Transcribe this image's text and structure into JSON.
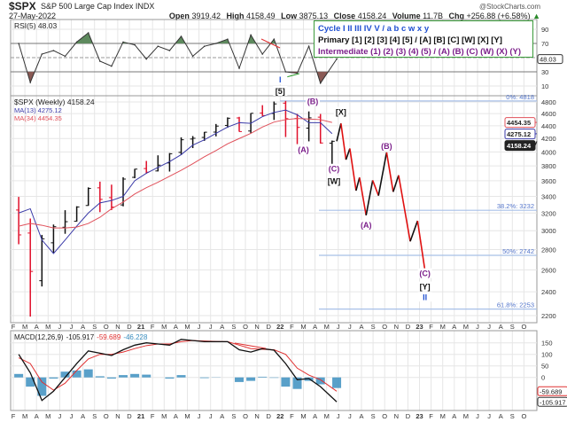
{
  "header": {
    "symbol": "$SPX",
    "name": "S&P 500 Large Cap Index INDX",
    "brand": "@StockCharts.com",
    "date": "27-May-2022",
    "open_label": "Open",
    "open": "3919.42",
    "high_label": "High",
    "high": "4158.49",
    "low_label": "Low",
    "low": "3875.13",
    "close_label": "Close",
    "close": "4158.24",
    "volume_label": "Volume",
    "volume": "11.7B",
    "chg_label": "Chg",
    "chg": "+256.88 (+6.58%)"
  },
  "legend": {
    "cycle": "Cycle I II III IV V / a b c w x y",
    "primary": "Primary [1] [2] [3] [4] [5] / [A] [B] [C] [W] [X] [Y]",
    "intermediate": "Intermediate (1) (2) (3) (4) (5) / (A) (B) (C) (W) (X) (Y)",
    "colors": {
      "cycle": "#1f4fd1",
      "primary": "#111111",
      "intermediate": "#7b1f8a"
    }
  },
  "x_axis": {
    "labels": [
      "F",
      "M",
      "A",
      "M",
      "J",
      "J",
      "A",
      "S",
      "O",
      "N",
      "D",
      "21",
      "F",
      "M",
      "A",
      "M",
      "J",
      "J",
      "A",
      "S",
      "O",
      "N",
      "D",
      "22",
      "F",
      "M",
      "A",
      "M",
      "J",
      "J",
      "A",
      "S",
      "O",
      "N",
      "D",
      "23",
      "F",
      "M",
      "A",
      "M",
      "J",
      "J",
      "A",
      "S",
      "O"
    ]
  },
  "chart_data": [
    {
      "type": "line",
      "panel": "rsi",
      "title": "RSI(5) 48.03",
      "current_label": "48.03",
      "ylim": [
        0,
        100
      ],
      "yticks": [
        "90",
        "70",
        "30",
        "10"
      ],
      "ytick_values": [
        90,
        70,
        30,
        10
      ],
      "overbought": 70,
      "oversold": 30,
      "x": [
        "2020-02-15",
        "2020-03-15",
        "2020-04-15",
        "2020-05-15",
        "2020-06-15",
        "2020-07-15",
        "2020-08-15",
        "2020-09-15",
        "2020-10-15",
        "2020-11-15",
        "2020-12-15",
        "2021-01-15",
        "2021-02-15",
        "2021-03-15",
        "2021-04-15",
        "2021-05-15",
        "2021-06-15",
        "2021-07-15",
        "2021-08-15",
        "2021-09-15",
        "2021-10-15",
        "2021-11-15",
        "2021-12-15",
        "2022-01-15",
        "2022-02-15",
        "2022-03-15",
        "2022-04-15",
        "2022-05-27"
      ],
      "values": [
        70,
        15,
        55,
        60,
        52,
        72,
        85,
        45,
        38,
        72,
        68,
        48,
        66,
        60,
        80,
        52,
        66,
        70,
        76,
        35,
        82,
        55,
        76,
        30,
        28,
        66,
        14,
        48
      ],
      "colors": {
        "line": "#333333",
        "overbought_fill": "#5e8a5e",
        "oversold_fill": "#8a5a55"
      }
    },
    {
      "type": "bar",
      "panel": "price",
      "title": "$SPX (Weekly) 4158.24",
      "scale": "log",
      "ylim": [
        2150,
        4900
      ],
      "yticks": [
        "4800",
        "4600",
        "4400",
        "4200",
        "4000",
        "3800",
        "3600",
        "3400",
        "3200",
        "3000",
        "2800",
        "2600",
        "2400",
        "2200"
      ],
      "ytick_values": [
        4800,
        4600,
        4400,
        4200,
        4000,
        3800,
        3600,
        3400,
        3200,
        3000,
        2800,
        2600,
        2400,
        2200
      ],
      "bars": {
        "x": [
          "2020-02-15",
          "2020-03-15",
          "2020-04-15",
          "2020-05-15",
          "2020-06-15",
          "2020-07-15",
          "2020-08-15",
          "2020-09-15",
          "2020-10-15",
          "2020-11-15",
          "2020-12-15",
          "2021-01-15",
          "2021-02-15",
          "2021-03-15",
          "2021-04-15",
          "2021-05-15",
          "2021-06-15",
          "2021-07-15",
          "2021-08-15",
          "2021-09-15",
          "2021-10-15",
          "2021-11-15",
          "2021-12-15",
          "2022-01-15",
          "2022-02-15",
          "2022-03-15",
          "2022-04-15",
          "2022-05-15"
        ],
        "open": [
          3235,
          2974,
          2499,
          2870,
          3038,
          3105,
          3289,
          3508,
          3385,
          3296,
          3645,
          3764,
          3731,
          3842,
          3993,
          4192,
          4217,
          4300,
          4406,
          4528,
          4317,
          4610,
          4603,
          4779,
          4519,
          4363,
          4541,
          4130
        ],
        "high": [
          3394,
          3136,
          2954,
          3068,
          3233,
          3280,
          3514,
          3588,
          3549,
          3646,
          3760,
          3870,
          3950,
          3983,
          4218,
          4238,
          4302,
          4429,
          4537,
          4546,
          4608,
          4744,
          4808,
          4818,
          4595,
          4637,
          4594,
          4169
        ],
        "low": [
          2855,
          2192,
          2447,
          2767,
          2966,
          3101,
          3285,
          3210,
          3234,
          3279,
          3633,
          3694,
          3725,
          3723,
          3955,
          4056,
          4164,
          4233,
          4368,
          4306,
          4279,
          4560,
          4495,
          4223,
          4115,
          4157,
          4124,
          3811
        ],
        "close": [
          2954,
          2585,
          2912,
          3044,
          3100,
          3271,
          3500,
          3363,
          3270,
          3622,
          3756,
          3714,
          3811,
          3973,
          4181,
          4204,
          4298,
          4395,
          4523,
          4308,
          4605,
          4567,
          4766,
          4516,
          4374,
          4530,
          4132,
          4158
        ]
      },
      "series": [
        {
          "name": "MA(13) 4275.12",
          "current_label": "4275.12",
          "color": "#3a3aa8",
          "values": [
            3200,
            3250,
            2900,
            2760,
            2900,
            3050,
            3200,
            3320,
            3350,
            3400,
            3600,
            3700,
            3780,
            3860,
            3960,
            4100,
            4180,
            4280,
            4380,
            4450,
            4440,
            4550,
            4620,
            4660,
            4580,
            4450,
            4450,
            4275
          ]
        },
        {
          "name": "MA(34) 4454.35",
          "current_label": "4454.35",
          "color": "#e0505a",
          "values": [
            3050,
            3080,
            3060,
            3030,
            3030,
            3040,
            3080,
            3150,
            3250,
            3330,
            3430,
            3510,
            3580,
            3660,
            3740,
            3830,
            3930,
            4020,
            4120,
            4200,
            4280,
            4380,
            4460,
            4500,
            4520,
            4510,
            4500,
            4454
          ]
        }
      ],
      "last_price_label": "4158.24",
      "projection": {
        "x": [
          "2022-05-27",
          "2022-06-08",
          "2022-06-21",
          "2022-07-01",
          "2022-07-17",
          "2022-07-26",
          "2022-08-13",
          "2022-08-30",
          "2022-09-15",
          "2022-10-06",
          "2022-10-23",
          "2022-11-07",
          "2022-12-07",
          "2022-12-26",
          "2023-01-15"
        ],
        "values": [
          4158,
          4438,
          3888,
          4050,
          3472,
          3643,
          3173,
          3606,
          3409,
          3993,
          3457,
          3672,
          2885,
          3110,
          2597
        ],
        "up_color": "#111111",
        "down_color": "#e01010"
      },
      "fib_levels": [
        {
          "label": "0%: 4818",
          "value": 4818
        },
        {
          "label": "38.2%: 3232",
          "value": 3232
        },
        {
          "label": "50%: 2742",
          "value": 2742
        },
        {
          "label": "61.8%: 2253",
          "value": 2253
        }
      ],
      "wave_labels": [
        {
          "text": "I",
          "degree": "cycle",
          "x": "2021-12-31",
          "panel": "rsi"
        },
        {
          "text": "[5]",
          "degree": "primary",
          "x": "2021-12-31",
          "panel": "rsi"
        },
        {
          "text": "(B)",
          "degree": "intermediate",
          "x": "2022-03-25",
          "value": 4760
        },
        {
          "text": "[X]",
          "degree": "primary",
          "x": "2022-06-08",
          "value": 4580
        },
        {
          "text": "(A)",
          "degree": "intermediate",
          "x": "2022-03-01",
          "value": 3990
        },
        {
          "text": "(C)",
          "degree": "intermediate",
          "x": "2022-05-20",
          "value": 3720
        },
        {
          "text": "[W]",
          "degree": "primary",
          "x": "2022-05-20",
          "value": 3560
        },
        {
          "text": "(B)",
          "degree": "intermediate",
          "x": "2022-10-06",
          "value": 4040
        },
        {
          "text": "(A)",
          "degree": "intermediate",
          "x": "2022-08-13",
          "value": 3030
        },
        {
          "text": "(C)",
          "degree": "intermediate",
          "x": "2023-01-15",
          "value": 2540
        },
        {
          "text": "[Y]",
          "degree": "primary",
          "x": "2023-01-15",
          "value": 2420
        },
        {
          "text": "II",
          "degree": "cycle",
          "x": "2023-01-15",
          "value": 2330
        }
      ]
    },
    {
      "type": "line",
      "panel": "macd",
      "title": "MACD(12,26,9)",
      "title_values": [
        "-105.917",
        "-59.689",
        "-46.228"
      ],
      "yticks": [
        "150",
        "100",
        "50",
        "0"
      ],
      "ytick_values": [
        150,
        100,
        50,
        0
      ],
      "x": [
        "2020-02-15",
        "2020-03-15",
        "2020-04-15",
        "2020-05-15",
        "2020-06-15",
        "2020-07-15",
        "2020-08-15",
        "2020-09-15",
        "2020-10-15",
        "2020-11-15",
        "2020-12-15",
        "2021-01-15",
        "2021-02-15",
        "2021-03-15",
        "2021-04-15",
        "2021-05-15",
        "2021-06-15",
        "2021-07-15",
        "2021-08-15",
        "2021-09-15",
        "2021-10-15",
        "2021-11-15",
        "2021-12-15",
        "2022-01-15",
        "2022-02-15",
        "2022-03-15",
        "2022-04-15",
        "2022-05-27"
      ],
      "series": [
        {
          "name": "MACD",
          "current_label": "-105.917",
          "color": "#111111",
          "values": [
            100,
            20,
            -100,
            -60,
            0,
            60,
            115,
            105,
            95,
            120,
            140,
            150,
            145,
            140,
            165,
            160,
            155,
            155,
            155,
            120,
            110,
            125,
            118,
            60,
            -10,
            -5,
            -40,
            -106
          ]
        },
        {
          "name": "Signal",
          "current_label": "-59.689",
          "color": "#e03030",
          "values": [
            85,
            60,
            -20,
            -55,
            -25,
            30,
            80,
            100,
            100,
            110,
            125,
            138,
            145,
            145,
            155,
            160,
            158,
            156,
            155,
            140,
            125,
            122,
            120,
            100,
            40,
            10,
            -10,
            -60
          ]
        },
        {
          "name": "Histogram",
          "color": "#3c8fc0",
          "derived": "macd-signal"
        }
      ]
    }
  ]
}
